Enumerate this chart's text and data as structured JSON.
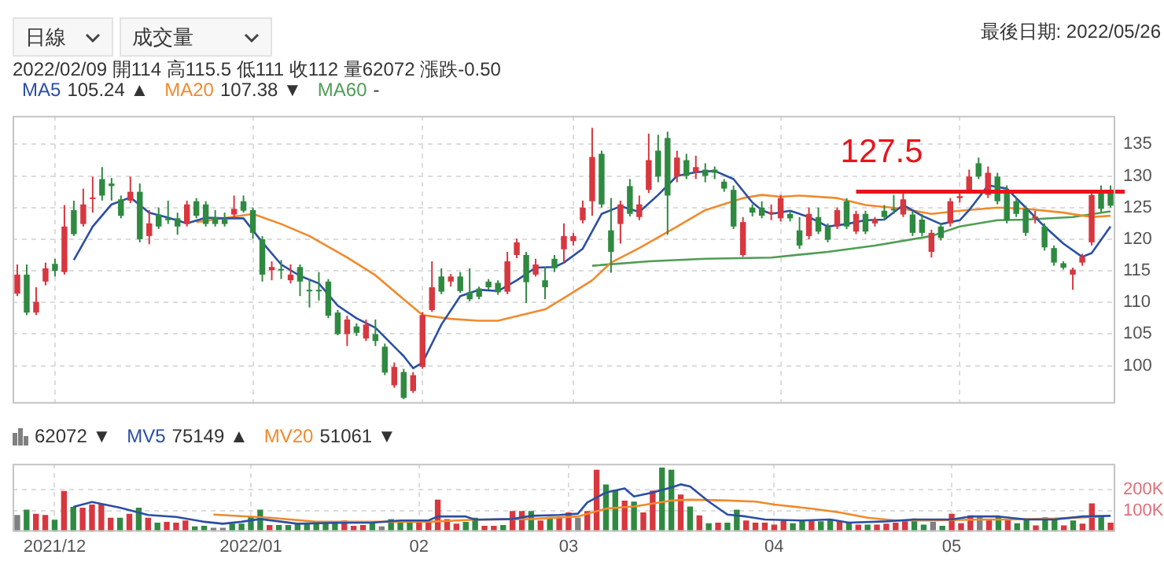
{
  "chart_data": [
    {
      "type": "candlestick",
      "categories": [
        null,
        null,
        null,
        null,
        null,
        null,
        null,
        null,
        null,
        null,
        null,
        null,
        null,
        null,
        null,
        null,
        null,
        null,
        null,
        null,
        null,
        null,
        null,
        null,
        null,
        null,
        null,
        null,
        null,
        null,
        null,
        null,
        null,
        null,
        null,
        null,
        null,
        null,
        null,
        null,
        null,
        null,
        null,
        null,
        null,
        null,
        null,
        null,
        null,
        null,
        null,
        null,
        null,
        null,
        null,
        null,
        null,
        null,
        null,
        null,
        null,
        null,
        null,
        null,
        null,
        null,
        null,
        null,
        null,
        null,
        null,
        null,
        null,
        null,
        null,
        null,
        null,
        null,
        null,
        null,
        null,
        null,
        null,
        null,
        null,
        null,
        null,
        null,
        null,
        null,
        null,
        null,
        null,
        null,
        null,
        null,
        null,
        null,
        null,
        null,
        null,
        null,
        null,
        null,
        null,
        null,
        null,
        null,
        null,
        null,
        null,
        null,
        null,
        null,
        null,
        null,
        null
      ],
      "ohlc": [
        [
          111.4,
          116,
          111,
          114.4
        ],
        [
          114.4,
          116,
          108,
          108.4
        ],
        [
          108.4,
          112.4,
          108,
          110.1
        ],
        [
          113.3,
          116.3,
          112.7,
          115.4
        ],
        [
          116.1,
          116.9,
          114.1,
          115
        ],
        [
          114.8,
          125.4,
          114.4,
          122
        ],
        [
          124.6,
          126.1,
          120.5,
          120.8
        ],
        [
          122.4,
          128,
          122,
          125.5
        ],
        [
          126.4,
          129.9,
          124.2,
          126.6
        ],
        [
          129.5,
          131.4,
          126.1,
          126.9
        ],
        [
          128.8,
          129.7,
          126.1,
          128.4
        ],
        [
          126.3,
          126.9,
          123.3,
          123.7
        ],
        [
          126.1,
          129.9,
          125.7,
          127.5
        ],
        [
          127.5,
          128.8,
          119.5,
          120
        ],
        [
          120.5,
          124.6,
          119.2,
          122.5
        ],
        [
          123.9,
          125,
          121.6,
          122
        ],
        [
          123.3,
          126.1,
          122.4,
          123
        ],
        [
          123.3,
          124.2,
          120.7,
          122
        ],
        [
          122.4,
          126.1,
          122,
          125.5
        ],
        [
          126,
          126.5,
          123.3,
          123.7
        ],
        [
          125.5,
          126,
          122,
          122.4
        ],
        [
          123.5,
          124.6,
          122,
          122.4
        ],
        [
          123.1,
          124.2,
          122,
          122.4
        ],
        [
          123.9,
          126.9,
          123.3,
          124.8
        ],
        [
          126,
          126.9,
          124.2,
          124.5
        ],
        [
          124.6,
          125,
          120.1,
          121
        ],
        [
          120,
          120.5,
          113.3,
          114.4
        ],
        [
          115.1,
          116.5,
          113.5,
          115.6
        ],
        [
          115.3,
          116.7,
          113.7,
          115.1
        ],
        [
          113.5,
          116,
          113,
          114.4
        ],
        [
          115.6,
          116,
          111,
          113.3
        ],
        [
          112,
          113.7,
          109.2,
          111.8
        ],
        [
          112,
          114.8,
          110.3,
          111.9
        ],
        [
          113.3,
          113.7,
          107.5,
          107.9
        ],
        [
          108.4,
          108.8,
          104.8,
          105
        ],
        [
          105,
          107.9,
          103.1,
          107.3
        ],
        [
          106.2,
          106.7,
          104.7,
          105.2
        ],
        [
          104.3,
          107.3,
          103.9,
          106.5
        ],
        [
          105,
          107.3,
          103.1,
          103.9
        ],
        [
          103,
          103.5,
          98.5,
          98.9
        ],
        [
          96.9,
          100.5,
          96.5,
          99.8
        ],
        [
          99,
          99.5,
          94.7,
          94.9
        ],
        [
          96,
          99,
          95.7,
          98.5
        ],
        [
          99.8,
          108.5,
          99.5,
          108
        ],
        [
          108.8,
          116.5,
          108.5,
          112.4
        ],
        [
          114.1,
          115.4,
          111.3,
          111.7
        ],
        [
          113.3,
          114.5,
          112.5,
          114.1
        ],
        [
          114.1,
          114.8,
          111.5,
          111.8
        ],
        [
          111.6,
          115.4,
          110.2,
          110.5
        ],
        [
          112.2,
          112.5,
          110.5,
          110.9
        ],
        [
          113.3,
          113.7,
          112,
          112.4
        ],
        [
          113.1,
          113.5,
          111.2,
          111.6
        ],
        [
          111.7,
          118,
          111.3,
          116.5
        ],
        [
          117.5,
          120.1,
          117,
          119.5
        ],
        [
          117.5,
          118,
          109.9,
          113.2
        ],
        [
          114.4,
          116.9,
          114.1,
          116
        ],
        [
          113.5,
          115.6,
          110.5,
          112.4
        ],
        [
          116.9,
          117.5,
          114.8,
          115.4
        ],
        [
          118.4,
          122.5,
          116.3,
          120.5
        ],
        [
          119.7,
          121,
          119,
          120.5
        ],
        [
          123,
          126.1,
          122.5,
          125
        ],
        [
          126,
          137.6,
          123.7,
          133
        ],
        [
          133.5,
          134,
          125,
          125.5
        ],
        [
          121.4,
          126.5,
          114.7,
          118
        ],
        [
          122.4,
          126.1,
          119.3,
          125.5
        ],
        [
          128.4,
          129.5,
          123.6,
          124
        ],
        [
          123.5,
          126.9,
          123,
          125.5
        ],
        [
          127.8,
          136.7,
          127.3,
          132.5
        ],
        [
          134,
          136.5,
          129,
          129.9
        ],
        [
          136,
          137,
          120.7,
          126.9
        ],
        [
          129.9,
          134,
          129,
          132.9
        ],
        [
          132.5,
          133.5,
          129.5,
          130
        ],
        [
          130.6,
          133.2,
          129.5,
          131.4
        ],
        [
          131,
          132,
          129,
          130
        ],
        [
          131,
          131.5,
          129.5,
          130.5
        ],
        [
          129.1,
          129.5,
          127.5,
          128
        ],
        [
          127.8,
          128.5,
          121.6,
          122
        ],
        [
          117.5,
          123.5,
          117.2,
          122.7
        ],
        [
          125,
          125.5,
          123.6,
          124.2
        ],
        [
          125,
          126,
          123.3,
          123.7
        ],
        [
          124,
          125.5,
          123,
          124.3
        ],
        [
          123.3,
          127,
          122.8,
          126.5
        ],
        [
          124,
          124.5,
          122.8,
          123.3
        ],
        [
          121.4,
          123.5,
          118.5,
          119
        ],
        [
          120.5,
          125,
          120,
          124
        ],
        [
          123.5,
          125,
          120.8,
          121.2
        ],
        [
          122,
          122.5,
          119.5,
          119.9
        ],
        [
          122,
          125,
          121.6,
          124.6
        ],
        [
          126,
          126.5,
          121.6,
          122
        ],
        [
          121.2,
          124.5,
          120.8,
          124
        ],
        [
          124,
          124.5,
          120.8,
          121.2
        ],
        [
          122.5,
          123.5,
          122,
          123.1
        ],
        [
          124.5,
          125.4,
          123,
          123.5
        ],
        [
          124.8,
          127,
          124,
          124.6
        ],
        [
          123.9,
          127.6,
          123.5,
          126.3
        ],
        [
          123.9,
          124.5,
          120.5,
          121
        ],
        [
          123.1,
          124,
          120.5,
          121
        ],
        [
          118,
          121.5,
          117.1,
          121
        ],
        [
          122,
          122.5,
          119.8,
          120.2
        ],
        [
          122.5,
          126.5,
          122,
          126
        ],
        [
          126.5,
          127.5,
          125.8,
          126.8
        ],
        [
          127.8,
          131,
          127.3,
          129.9
        ],
        [
          132,
          132.9,
          129.5,
          129.9
        ],
        [
          127,
          131.5,
          126.5,
          130.5
        ],
        [
          129.9,
          130.5,
          125.5,
          126
        ],
        [
          127.8,
          128.5,
          122.5,
          123
        ],
        [
          126,
          126.5,
          123.5,
          124
        ],
        [
          124.8,
          125.3,
          120.5,
          121
        ],
        [
          123.3,
          124.5,
          122.5,
          123.6
        ],
        [
          122,
          122.5,
          118.2,
          118.7
        ],
        [
          118.6,
          119,
          115.8,
          116.3
        ],
        [
          116.2,
          116.5,
          115.2,
          115.5
        ],
        [
          114.4,
          115.5,
          112,
          115.2
        ],
        [
          116.3,
          117.7,
          115.8,
          117.2
        ],
        [
          119.5,
          127.5,
          119,
          127
        ],
        [
          127.5,
          128.5,
          124.3,
          124.8
        ],
        [
          127.5,
          128.5,
          125,
          125.3
        ]
      ],
      "colors": [
        "#d7373f",
        "#2f8a41",
        "#d7373f",
        "#d7373f",
        "#2f8a41",
        "#d7373f",
        "#2f8a41",
        "#d7373f",
        "#d7373f",
        "#2f8a41",
        "#2f8a41",
        "#2f8a41",
        "#d7373f",
        "#2f8a41",
        "#d7373f",
        "#2f8a41",
        "#2f8a41",
        "#2f8a41",
        "#d7373f",
        "#2f8a41",
        "#2f8a41",
        "#2f8a41",
        "#2f8a41",
        "#d7373f",
        "#2f8a41",
        "#2f8a41",
        "#2f8a41",
        "#d7373f",
        "#2f8a41",
        "#d7373f",
        "#2f8a41",
        "#2f8a41",
        "#2f8a41",
        "#2f8a41",
        "#2f8a41",
        "#d7373f",
        "#2f8a41",
        "#d7373f",
        "#2f8a41",
        "#2f8a41",
        "#d7373f",
        "#2f8a41",
        "#d7373f",
        "#d7373f",
        "#d7373f",
        "#2f8a41",
        "#d7373f",
        "#2f8a41",
        "#2f8a41",
        "#2f8a41",
        "#2f8a41",
        "#2f8a41",
        "#d7373f",
        "#d7373f",
        "#2f8a41",
        "#d7373f",
        "#2f8a41",
        "#2f8a41",
        "#d7373f",
        "#d7373f",
        "#d7373f",
        "#d7373f",
        "#2f8a41",
        "#2f8a41",
        "#d7373f",
        "#2f8a41",
        "#d7373f",
        "#d7373f",
        "#2f8a41",
        "#2f8a41",
        "#d7373f",
        "#2f8a41",
        "#d7373f",
        "#2f8a41",
        "#2f8a41",
        "#2f8a41",
        "#2f8a41",
        "#d7373f",
        "#2f8a41",
        "#2f8a41",
        "#d7373f",
        "#d7373f",
        "#2f8a41",
        "#2f8a41",
        "#d7373f",
        "#2f8a41",
        "#2f8a41",
        "#d7373f",
        "#2f8a41",
        "#d7373f",
        "#2f8a41",
        "#d7373f",
        "#2f8a41",
        "#2f8a41",
        "#d7373f",
        "#2f8a41",
        "#2f8a41",
        "#d7373f",
        "#2f8a41",
        "#d7373f",
        "#d7373f",
        "#d7373f",
        "#2f8a41",
        "#d7373f",
        "#2f8a41",
        "#2f8a41",
        "#2f8a41",
        "#2f8a41",
        "#d7373f",
        "#2f8a41",
        "#2f8a41",
        "#2f8a41",
        "#d7373f",
        "#d7373f",
        "#d7373f",
        "#2f8a41",
        "#2f8a41"
      ],
      "series": [
        {
          "name": "MA5",
          "type": "line",
          "color": "#2a4fa3",
          "values": [
            null,
            null,
            null,
            null,
            null,
            null,
            116.7,
            null,
            122,
            null,
            125.5,
            null,
            126.6,
            null,
            124.2,
            null,
            123.4,
            null,
            122.5,
            null,
            123.4,
            null,
            123.3,
            null,
            123.3,
            null,
            119.5,
            null,
            116,
            null,
            114.2,
            null,
            113,
            null,
            109.5,
            null,
            107.5,
            null,
            106,
            104.5,
            null,
            101.5,
            99.6,
            100.5,
            103.5,
            106.5,
            null,
            111,
            null,
            112,
            null,
            111.8,
            null,
            113.5,
            null,
            115.5,
            null,
            115.6,
            116.3,
            null,
            118.5,
            null,
            124,
            null,
            125.2,
            null,
            124.3,
            null,
            127,
            null,
            130,
            null,
            130.6,
            null,
            130.8,
            null,
            129.5,
            null,
            125.8,
            124.6,
            124,
            null,
            124.5,
            null,
            123.5,
            null,
            122,
            null,
            122.4,
            null,
            123,
            null,
            123.1,
            null,
            125.4,
            null,
            123.7,
            null,
            122.4,
            null,
            123,
            124.6,
            null,
            128.5,
            null,
            128,
            null,
            125,
            null,
            122,
            null,
            119.3,
            null,
            117.2,
            117.8,
            null,
            122
          ]
        },
        {
          "name": "MA20",
          "type": "line",
          "color": "#f08a2c",
          "values": [
            null,
            null,
            null,
            null,
            null,
            null,
            null,
            null,
            null,
            null,
            null,
            null,
            null,
            null,
            null,
            null,
            null,
            null,
            null,
            122.7,
            null,
            null,
            null,
            null,
            null,
            124,
            null,
            null,
            122.4,
            null,
            null,
            120.5,
            null,
            null,
            null,
            117.1,
            null,
            null,
            114.3,
            null,
            null,
            110.5,
            null,
            108,
            null,
            null,
            107.4,
            null,
            null,
            107.1,
            null,
            107.1,
            null,
            null,
            108.2,
            null,
            108.9,
            null,
            110.7,
            null,
            null,
            113.5,
            null,
            116.3,
            null,
            null,
            118.6,
            null,
            null,
            null,
            122,
            null,
            null,
            124.6,
            null,
            null,
            null,
            126.5,
            null,
            127,
            null,
            126.7,
            null,
            126.9,
            null,
            null,
            null,
            126.5,
            null,
            null,
            125.4,
            null,
            null,
            null,
            124.8,
            null,
            null,
            124,
            null,
            null,
            124.5,
            null,
            null,
            null,
            125,
            null,
            null,
            124.8,
            null,
            null,
            null,
            124.2,
            null,
            null,
            123.5,
            null,
            123.7
          ]
        },
        {
          "name": "MA60",
          "type": "line",
          "color": "#4f9d55",
          "values": [
            null,
            null,
            null,
            null,
            null,
            null,
            null,
            null,
            null,
            null,
            null,
            null,
            null,
            null,
            null,
            null,
            null,
            null,
            null,
            null,
            null,
            null,
            null,
            null,
            null,
            null,
            null,
            null,
            null,
            null,
            null,
            null,
            null,
            null,
            null,
            null,
            null,
            null,
            null,
            null,
            null,
            null,
            null,
            null,
            null,
            null,
            null,
            null,
            null,
            null,
            null,
            null,
            null,
            null,
            null,
            null,
            null,
            null,
            null,
            null,
            null,
            115.8,
            null,
            null,
            null,
            null,
            null,
            116.5,
            null,
            null,
            null,
            null,
            null,
            116.9,
            null,
            null,
            null,
            null,
            null,
            null,
            117.1,
            null,
            null,
            null,
            null,
            null,
            118,
            null,
            null,
            null,
            null,
            119,
            null,
            null,
            null,
            null,
            null,
            120.5,
            null,
            null,
            122,
            null,
            null,
            null,
            123,
            null,
            null,
            123.1,
            null,
            null,
            null,
            null,
            123.5,
            null,
            null,
            null,
            124.4
          ]
        }
      ],
      "ylim": [
        94,
        139.5
      ],
      "yticks": [
        100,
        105,
        110,
        115,
        120,
        125,
        130,
        135
      ],
      "grid": true,
      "legend": "top left",
      "tick_labels": "y",
      "marker": "none",
      "ref_lines": [
        {
          "axis": "y",
          "value": 127.5,
          "label": "127.5",
          "color": "#e8141c"
        }
      ],
      "annotations": [
        "日線",
        "成交量",
        "最後日期: 2022/05/26",
        "2022/02/09 開114 高115.5 低111 收112 量62072 漲跌-0.50",
        "105.24 ▲",
        "107.38 ▼",
        "-"
      ]
    },
    {
      "type": "bar",
      "categories": [
        null,
        null,
        null,
        null,
        "2021/12",
        null,
        null,
        null,
        null,
        null,
        null,
        null,
        null,
        null,
        null,
        null,
        null,
        null,
        null,
        null,
        null,
        null,
        null,
        null,
        null,
        "2022/01",
        null,
        null,
        null,
        null,
        null,
        null,
        null,
        null,
        null,
        null,
        null,
        null,
        null,
        null,
        null,
        null,
        null,
        "02",
        null,
        null,
        null,
        null,
        null,
        null,
        null,
        null,
        null,
        null,
        null,
        null,
        null,
        null,
        null,
        "03",
        null,
        null,
        null,
        null,
        null,
        null,
        null,
        null,
        null,
        null,
        null,
        null,
        null,
        null,
        null,
        null,
        null,
        null,
        null,
        null,
        null,
        "04",
        null,
        null,
        null,
        null,
        null,
        null,
        null,
        null,
        null,
        null,
        null,
        null,
        null,
        null,
        null,
        null,
        null,
        null,
        "05",
        null,
        null,
        null,
        null,
        null,
        null,
        null,
        null,
        null,
        null,
        null,
        null,
        null,
        null,
        null,
        null,
        null
      ],
      "series": [
        {
          "color": "#808080",
          "colors": [
            "#808080",
            "#2f8a41",
            "#d7373f",
            "#d7373f",
            "#2f8a41",
            "#d7373f",
            "#2f8a41",
            "#d7373f",
            "#d7373f",
            "#d7373f",
            "#d7373f",
            "#2f8a41",
            "#d7373f",
            "#2f8a41",
            "#d7373f",
            "#2f8a41",
            "#d7373f",
            "#d7373f",
            "#d7373f",
            "#2f8a41",
            "#2f8a41",
            "#808080",
            "#808080",
            "#2f8a41",
            "#2f8a41",
            "#2f8a41",
            "#2f8a41",
            "#d7373f",
            "#2f8a41",
            "#2f8a41",
            "#2f8a41",
            "#2f8a41",
            "#2f8a41",
            "#2f8a41",
            "#2f8a41",
            "#d7373f",
            "#d7373f",
            "#d7373f",
            "#2f8a41",
            "#808080",
            "#2f8a41",
            "#2f8a41",
            "#2f8a41",
            "#d7373f",
            "#d7373f",
            "#d7373f",
            "#d7373f",
            "#d7373f",
            "#2f8a41",
            "#2f8a41",
            "#d7373f",
            "#d7373f",
            "#2f8a41",
            "#d7373f",
            "#d7373f",
            "#2f8a41",
            "#d7373f",
            "#2f8a41",
            "#d7373f",
            "#d7373f",
            "#808080",
            "#d7373f",
            "#d7373f",
            "#2f8a41",
            "#2f8a41",
            "#d7373f",
            "#2f8a41",
            "#d7373f",
            "#d7373f",
            "#2f8a41",
            "#2f8a41",
            "#d7373f",
            "#2f8a41",
            "#d7373f",
            "#2f8a41",
            "#d7373f",
            "#2f8a41",
            "#2f8a41",
            "#d7373f",
            "#d7373f",
            "#d7373f",
            "#d7373f",
            "#d7373f",
            "#2f8a41",
            "#2f8a41",
            "#d7373f",
            "#2f8a41",
            "#2f8a41",
            "#d7373f",
            "#2f8a41",
            "#d7373f",
            "#2f8a41",
            "#d7373f",
            "#d7373f",
            "#d7373f",
            "#d7373f",
            "#2f8a41",
            "#2f8a41",
            "#808080",
            "#2f8a41",
            "#d7373f",
            "#d7373f",
            "#d7373f",
            "#808080",
            "#d7373f",
            "#2f8a41",
            "#d7373f",
            "#2f8a41",
            "#2f8a41",
            "#d7373f",
            "#2f8a41",
            "#2f8a41",
            "#d7373f",
            "#2f8a41",
            "#d7373f",
            "#d7373f",
            "#2f8a41",
            "#d7373f"
          ],
          "values": [
            79000,
            104000,
            85000,
            79000,
            57000,
            192000,
            117000,
            113000,
            128000,
            132000,
            66000,
            66000,
            85000,
            113000,
            66000,
            43000,
            47000,
            43000,
            53000,
            25000,
            28000,
            19000,
            19000,
            38000,
            38000,
            72000,
            104000,
            32000,
            32000,
            32000,
            38000,
            43000,
            43000,
            43000,
            43000,
            53000,
            28000,
            32000,
            42000,
            25000,
            60000,
            47000,
            47000,
            47000,
            47000,
            151000,
            60000,
            38000,
            47000,
            66000,
            28000,
            28000,
            32000,
            98000,
            98000,
            98000,
            53000,
            70000,
            70000,
            91000,
            66000,
            98000,
            292000,
            223000,
            198000,
            147000,
            142000,
            91000,
            194000,
            302000,
            292000,
            175000,
            119000,
            77000,
            40000,
            43000,
            43000,
            104000,
            53000,
            43000,
            43000,
            34000,
            53000,
            40000,
            58000,
            53000,
            49000,
            58000,
            49000,
            43000,
            34000,
            34000,
            34000,
            38000,
            43000,
            53000,
            62000,
            34000,
            47000,
            28000,
            85000,
            40000,
            77000,
            72000,
            57000,
            72000,
            57000,
            40000,
            57000,
            30000,
            68000,
            62000,
            30000,
            53000,
            38000,
            134000,
            72000,
            43000
          ]
        },
        {
          "name": "MV5",
          "type": "line",
          "color": "#2a4fa3",
          "values": [
            null,
            null,
            null,
            null,
            null,
            null,
            117000,
            null,
            140000,
            null,
            null,
            113000,
            null,
            null,
            79000,
            null,
            null,
            70000,
            null,
            null,
            47000,
            null,
            38000,
            null,
            47000,
            null,
            60000,
            null,
            null,
            null,
            38000,
            null,
            null,
            null,
            42000,
            null,
            null,
            null,
            43000,
            null,
            null,
            53000,
            null,
            null,
            53000,
            72000,
            null,
            null,
            72000,
            57000,
            null,
            null,
            null,
            60000,
            null,
            75000,
            null,
            null,
            79000,
            null,
            85000,
            138000,
            null,
            185000,
            null,
            204000,
            166000,
            null,
            185000,
            null,
            209000,
            223000,
            213000,
            null,
            142000,
            null,
            81000,
            null,
            72000,
            null,
            58000,
            null,
            null,
            null,
            53000,
            null,
            null,
            58000,
            null,
            43000,
            null,
            null,
            null,
            49000,
            null,
            null,
            58000,
            null,
            null,
            null,
            58000,
            null,
            72000,
            null,
            null,
            72000,
            null,
            null,
            58000,
            null,
            null,
            58000,
            null,
            null,
            72000,
            null,
            null,
            75000
          ]
        },
        {
          "name": "MV20",
          "type": "line",
          "color": "#f08a2c",
          "values": [
            null,
            null,
            null,
            null,
            null,
            null,
            null,
            null,
            null,
            null,
            null,
            null,
            null,
            null,
            null,
            null,
            null,
            null,
            null,
            null,
            null,
            81000,
            null,
            null,
            null,
            null,
            null,
            66000,
            null,
            null,
            null,
            null,
            47000,
            null,
            null,
            null,
            null,
            null,
            null,
            null,
            null,
            null,
            null,
            null,
            47000,
            null,
            null,
            null,
            null,
            57000,
            null,
            null,
            null,
            null,
            null,
            60000,
            null,
            null,
            null,
            null,
            72000,
            null,
            null,
            109000,
            null,
            null,
            119000,
            null,
            null,
            null,
            147000,
            null,
            151000,
            null,
            null,
            null,
            147000,
            null,
            null,
            142000,
            null,
            128000,
            null,
            null,
            null,
            109000,
            null,
            null,
            91000,
            null,
            null,
            66000,
            null,
            null,
            53000,
            null,
            null,
            null,
            53000,
            null,
            null,
            null,
            57000,
            null,
            null,
            null,
            58000,
            null,
            null,
            null,
            null,
            62000,
            null,
            null,
            null,
            null,
            72000,
            null
          ]
        }
      ],
      "ylim": [
        0,
        320000
      ],
      "yticks": [
        {
          "value": 100000,
          "label": "100K"
        },
        {
          "value": 200000,
          "label": "200K"
        }
      ],
      "grid": true,
      "legend": "top left",
      "marker": "none",
      "annotations": [
        "62072 ▼",
        "75149 ▲",
        "51061 ▼"
      ]
    }
  ]
}
